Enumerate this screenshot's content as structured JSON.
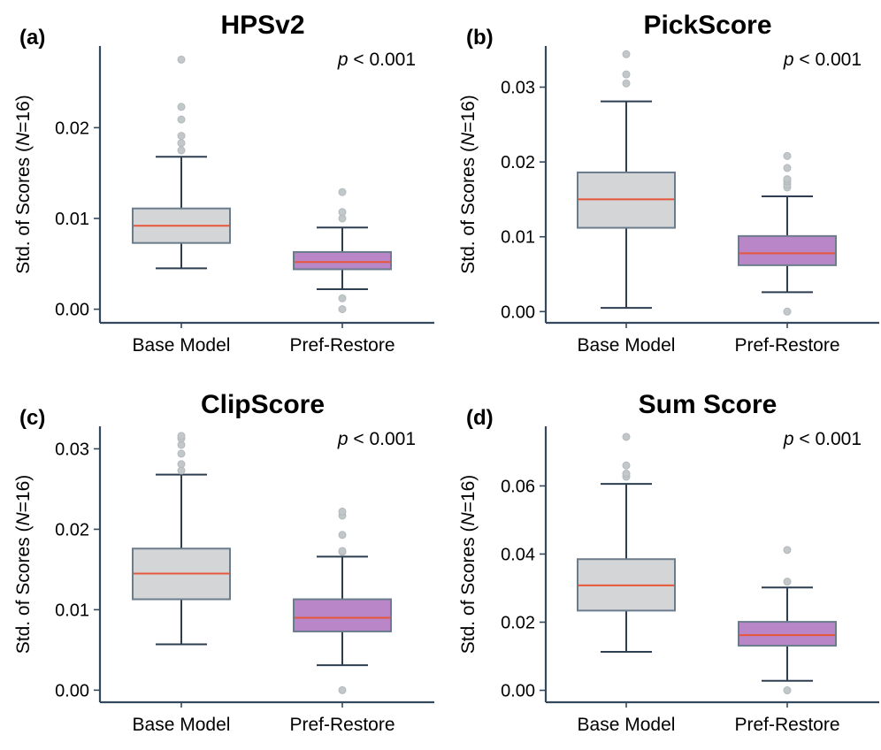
{
  "figure": {
    "colors": {
      "axis": "#34495e",
      "base_box": "#d3d5d7",
      "pref_box": "#b987c8",
      "box_edge": "#6b7c8d",
      "median": "#e8563a",
      "whisker": "#2c3e50",
      "outlier": "#c2c7c9"
    }
  },
  "chart_data": [
    {
      "panel": "(a)",
      "type": "box",
      "title": "HPSv2",
      "ylabel": "Std. of Scores (N=16)",
      "annotation": "p < 0.001",
      "categories": [
        "Base Model",
        "Pref-Restore"
      ],
      "ylim": [
        -0.0015,
        0.029
      ],
      "yticks": [
        0.0,
        0.01,
        0.02
      ],
      "ytick_labels": [
        "0.00",
        "0.01",
        "0.02"
      ],
      "boxes": [
        {
          "whisker_low": 0.0045,
          "q1": 0.0073,
          "median": 0.0092,
          "q3": 0.0111,
          "whisker_high": 0.0168,
          "outliers": [
            0.0175,
            0.0183,
            0.0191,
            0.0209,
            0.0223,
            0.0275
          ]
        },
        {
          "whisker_low": 0.0022,
          "q1": 0.0044,
          "median": 0.0052,
          "q3": 0.0063,
          "whisker_high": 0.009,
          "outliers": [
            0.0,
            0.0012,
            0.01,
            0.0107,
            0.0129
          ]
        }
      ]
    },
    {
      "panel": "(b)",
      "type": "box",
      "title": "PickScore",
      "ylabel": "Std. of Scores (N=16)",
      "annotation": "p < 0.001",
      "categories": [
        "Base Model",
        "Pref-Restore"
      ],
      "ylim": [
        -0.0015,
        0.0355
      ],
      "yticks": [
        0.0,
        0.01,
        0.02,
        0.03
      ],
      "ytick_labels": [
        "0.00",
        "0.01",
        "0.02",
        "0.03"
      ],
      "boxes": [
        {
          "whisker_low": 0.0005,
          "q1": 0.0112,
          "median": 0.015,
          "q3": 0.0186,
          "whisker_high": 0.0281,
          "outliers": [
            0.0305,
            0.0317,
            0.0344
          ]
        },
        {
          "whisker_low": 0.0026,
          "q1": 0.0062,
          "median": 0.0078,
          "q3": 0.0101,
          "whisker_high": 0.0154,
          "outliers": [
            0.0,
            0.0166,
            0.017,
            0.0174,
            0.0177,
            0.0192,
            0.0208
          ]
        }
      ]
    },
    {
      "panel": "(c)",
      "type": "box",
      "title": "ClipScore",
      "ylabel": "Std. of Scores (N=16)",
      "annotation": "p < 0.001",
      "categories": [
        "Base Model",
        "Pref-Restore"
      ],
      "ylim": [
        -0.0015,
        0.0328
      ],
      "yticks": [
        0.0,
        0.01,
        0.02,
        0.03
      ],
      "ytick_labels": [
        "0.00",
        "0.01",
        "0.02",
        "0.03"
      ],
      "boxes": [
        {
          "whisker_low": 0.0057,
          "q1": 0.0113,
          "median": 0.0145,
          "q3": 0.0176,
          "whisker_high": 0.0268,
          "outliers": [
            0.0273,
            0.0281,
            0.0294,
            0.0305,
            0.0313,
            0.0316
          ]
        },
        {
          "whisker_low": 0.0031,
          "q1": 0.0073,
          "median": 0.009,
          "q3": 0.0113,
          "whisker_high": 0.0166,
          "outliers": [
            0.0,
            0.0172,
            0.0173,
            0.0193,
            0.0217,
            0.0222
          ]
        }
      ]
    },
    {
      "panel": "(d)",
      "type": "box",
      "title": "Sum Score",
      "ylabel": "Std. of Scores (N=16)",
      "annotation": "p < 0.001",
      "categories": [
        "Base Model",
        "Pref-Restore"
      ],
      "ylim": [
        -0.0035,
        0.0775
      ],
      "yticks": [
        0.0,
        0.02,
        0.04,
        0.06
      ],
      "ytick_labels": [
        "0.00",
        "0.02",
        "0.04",
        "0.06"
      ],
      "boxes": [
        {
          "whisker_low": 0.0113,
          "q1": 0.0234,
          "median": 0.0308,
          "q3": 0.0385,
          "whisker_high": 0.0606,
          "outliers": [
            0.0627,
            0.0636,
            0.066,
            0.0744
          ]
        },
        {
          "whisker_low": 0.0028,
          "q1": 0.0131,
          "median": 0.0162,
          "q3": 0.0201,
          "whisker_high": 0.0302,
          "outliers": [
            0.0,
            0.0319,
            0.0412
          ]
        }
      ]
    }
  ]
}
